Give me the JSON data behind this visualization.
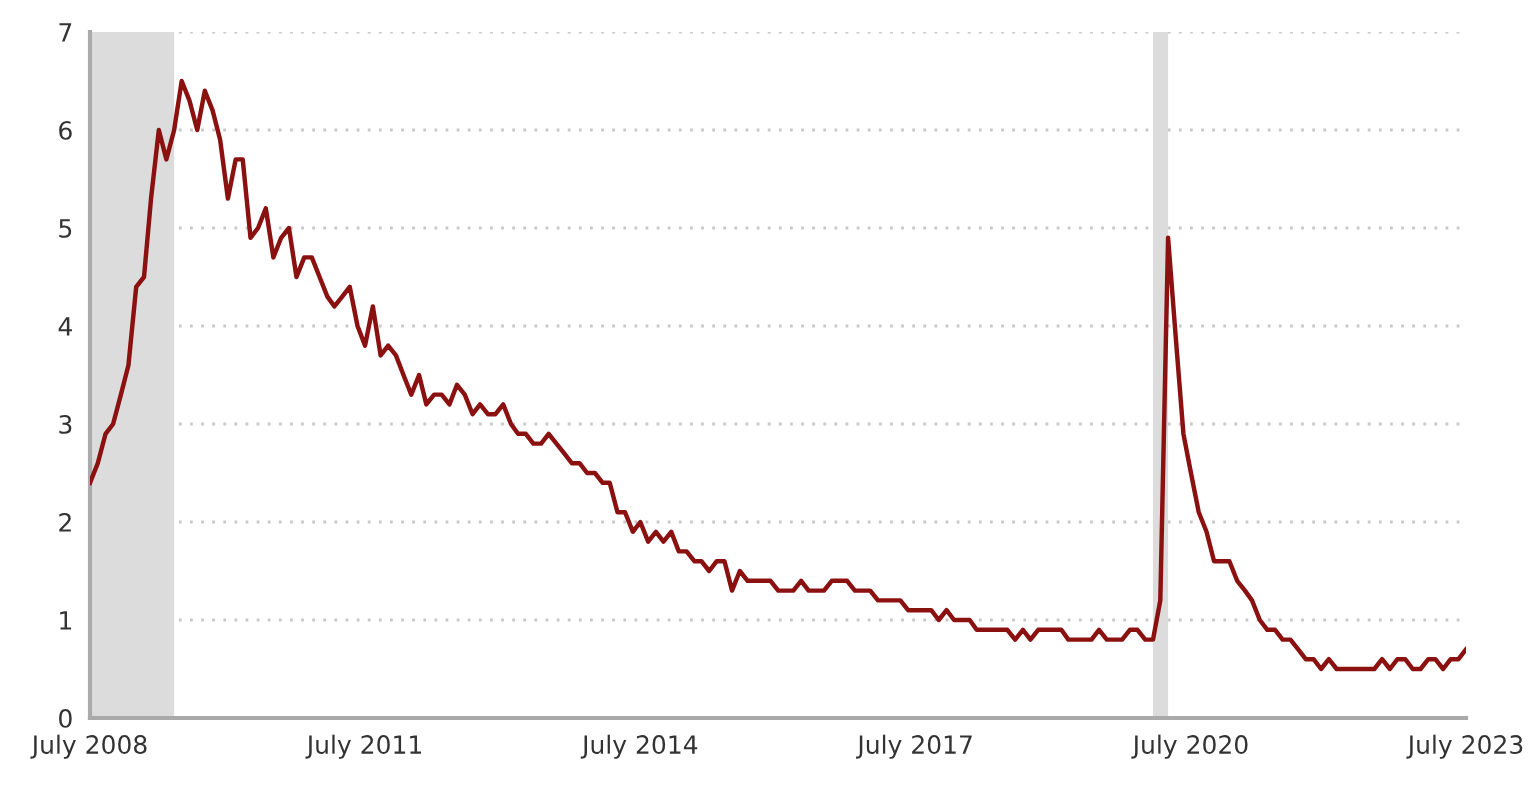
{
  "chart_data": {
    "type": "line",
    "x": [
      "2008-07",
      "2008-08",
      "2008-09",
      "2008-10",
      "2008-11",
      "2008-12",
      "2009-01",
      "2009-02",
      "2009-03",
      "2009-04",
      "2009-05",
      "2009-06",
      "2009-07",
      "2009-08",
      "2009-09",
      "2009-10",
      "2009-11",
      "2009-12",
      "2010-01",
      "2010-02",
      "2010-03",
      "2010-04",
      "2010-05",
      "2010-06",
      "2010-07",
      "2010-08",
      "2010-09",
      "2010-10",
      "2010-11",
      "2010-12",
      "2011-01",
      "2011-02",
      "2011-03",
      "2011-04",
      "2011-05",
      "2011-06",
      "2011-07",
      "2011-08",
      "2011-09",
      "2011-10",
      "2011-11",
      "2011-12",
      "2012-01",
      "2012-02",
      "2012-03",
      "2012-04",
      "2012-05",
      "2012-06",
      "2012-07",
      "2012-08",
      "2012-09",
      "2012-10",
      "2012-11",
      "2012-12",
      "2013-01",
      "2013-02",
      "2013-03",
      "2013-04",
      "2013-05",
      "2013-06",
      "2013-07",
      "2013-08",
      "2013-09",
      "2013-10",
      "2013-11",
      "2013-12",
      "2014-01",
      "2014-02",
      "2014-03",
      "2014-04",
      "2014-05",
      "2014-06",
      "2014-07",
      "2014-08",
      "2014-09",
      "2014-10",
      "2014-11",
      "2014-12",
      "2015-01",
      "2015-02",
      "2015-03",
      "2015-04",
      "2015-05",
      "2015-06",
      "2015-07",
      "2015-08",
      "2015-09",
      "2015-10",
      "2015-11",
      "2015-12",
      "2016-01",
      "2016-02",
      "2016-03",
      "2016-04",
      "2016-05",
      "2016-06",
      "2016-07",
      "2016-08",
      "2016-09",
      "2016-10",
      "2016-11",
      "2016-12",
      "2017-01",
      "2017-02",
      "2017-03",
      "2017-04",
      "2017-05",
      "2017-06",
      "2017-07",
      "2017-08",
      "2017-09",
      "2017-10",
      "2017-11",
      "2017-12",
      "2018-01",
      "2018-02",
      "2018-03",
      "2018-04",
      "2018-05",
      "2018-06",
      "2018-07",
      "2018-08",
      "2018-09",
      "2018-10",
      "2018-11",
      "2018-12",
      "2019-01",
      "2019-02",
      "2019-03",
      "2019-04",
      "2019-05",
      "2019-06",
      "2019-07",
      "2019-08",
      "2019-09",
      "2019-10",
      "2019-11",
      "2019-12",
      "2020-01",
      "2020-02",
      "2020-03",
      "2020-04",
      "2020-05",
      "2020-06",
      "2020-07",
      "2020-08",
      "2020-09",
      "2020-10",
      "2020-11",
      "2020-12",
      "2021-01",
      "2021-02",
      "2021-03",
      "2021-04",
      "2021-05",
      "2021-06",
      "2021-07",
      "2021-08",
      "2021-09",
      "2021-10",
      "2021-11",
      "2021-12",
      "2022-01",
      "2022-02",
      "2022-03",
      "2022-04",
      "2022-05",
      "2022-06",
      "2022-07",
      "2022-08",
      "2022-09",
      "2022-10",
      "2022-11",
      "2022-12",
      "2023-01",
      "2023-02",
      "2023-03",
      "2023-04",
      "2023-05",
      "2023-06",
      "2023-07"
    ],
    "series": [
      {
        "color": "#8b1010",
        "values": [
          2.4,
          2.6,
          2.9,
          3.0,
          3.3,
          3.6,
          4.4,
          4.5,
          5.3,
          6.0,
          5.7,
          6.0,
          6.5,
          6.3,
          6.0,
          6.4,
          6.2,
          5.9,
          5.3,
          5.7,
          5.7,
          4.9,
          5.0,
          5.2,
          4.7,
          4.9,
          5.0,
          4.5,
          4.7,
          4.7,
          4.5,
          4.3,
          4.2,
          4.3,
          4.4,
          4.0,
          3.8,
          4.2,
          3.7,
          3.8,
          3.7,
          3.5,
          3.3,
          3.5,
          3.2,
          3.3,
          3.3,
          3.2,
          3.4,
          3.3,
          3.1,
          3.2,
          3.1,
          3.1,
          3.2,
          3.0,
          2.9,
          2.9,
          2.8,
          2.8,
          2.9,
          2.8,
          2.7,
          2.6,
          2.6,
          2.5,
          2.5,
          2.4,
          2.4,
          2.1,
          2.1,
          1.9,
          2.0,
          1.8,
          1.9,
          1.8,
          1.9,
          1.7,
          1.7,
          1.6,
          1.6,
          1.5,
          1.6,
          1.6,
          1.3,
          1.5,
          1.4,
          1.4,
          1.4,
          1.4,
          1.3,
          1.3,
          1.3,
          1.4,
          1.3,
          1.3,
          1.3,
          1.4,
          1.4,
          1.4,
          1.3,
          1.3,
          1.3,
          1.2,
          1.2,
          1.2,
          1.2,
          1.1,
          1.1,
          1.1,
          1.1,
          1.0,
          1.1,
          1.0,
          1.0,
          1.0,
          0.9,
          0.9,
          0.9,
          0.9,
          0.9,
          0.8,
          0.9,
          0.8,
          0.9,
          0.9,
          0.9,
          0.9,
          0.8,
          0.8,
          0.8,
          0.8,
          0.9,
          0.8,
          0.8,
          0.8,
          0.9,
          0.9,
          0.8,
          0.8,
          1.2,
          4.9,
          3.9,
          2.9,
          2.5,
          2.1,
          1.9,
          1.6,
          1.6,
          1.6,
          1.4,
          1.3,
          1.2,
          1.0,
          0.9,
          0.9,
          0.8,
          0.8,
          0.7,
          0.6,
          0.6,
          0.5,
          0.6,
          0.5,
          0.5,
          0.5,
          0.5,
          0.5,
          0.5,
          0.6,
          0.5,
          0.6,
          0.6,
          0.5,
          0.5,
          0.6,
          0.6,
          0.5,
          0.6,
          0.6,
          0.7
        ]
      }
    ],
    "xlim": [
      "2008-07",
      "2023-07"
    ],
    "xticks": [
      {
        "value": "2008-07",
        "label": "July 2008"
      },
      {
        "value": "2011-07",
        "label": "July 2011"
      },
      {
        "value": "2014-07",
        "label": "July 2014"
      },
      {
        "value": "2017-07",
        "label": "July 2017"
      },
      {
        "value": "2020-07",
        "label": "July 2020"
      },
      {
        "value": "2023-07",
        "label": "July 2023"
      }
    ],
    "ylim": [
      0,
      7
    ],
    "yticks": [
      0,
      1,
      2,
      3,
      4,
      5,
      6,
      7
    ],
    "grid": "y",
    "line_style": "solid",
    "marker": "none",
    "bands": [
      {
        "axis": "x",
        "from": "2008-07",
        "to": "2009-06",
        "color": "#dcdcdc"
      },
      {
        "axis": "x",
        "from": "2020-02",
        "to": "2020-04",
        "color": "#dcdcdc"
      }
    ]
  }
}
